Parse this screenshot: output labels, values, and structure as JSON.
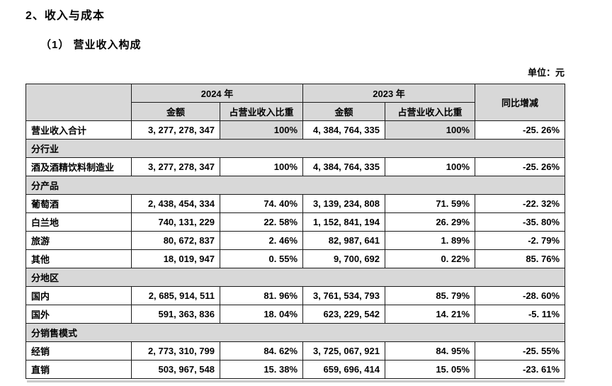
{
  "page": {
    "title": "2、收入与成本",
    "subtitle": "（1）  营业收入构成",
    "unit_label": "单位：元"
  },
  "table": {
    "header": {
      "year_2024": "2024 年",
      "year_2023": "2023 年",
      "amount": "金额",
      "ratio": "占营业收入比重",
      "yoy": "同比增减"
    },
    "rows": [
      {
        "type": "data",
        "label": "营业收入合计",
        "amount_2024": "3, 277, 278, 347",
        "ratio_2024": "100%",
        "amount_2023": "4, 384, 764, 335",
        "ratio_2023": "100%",
        "yoy": "-25. 26%",
        "shade_ratio": true
      },
      {
        "type": "section",
        "label": "分行业"
      },
      {
        "type": "data",
        "label": "酒及酒精饮料制造业",
        "amount_2024": "3, 277, 278, 347",
        "ratio_2024": "100%",
        "amount_2023": "4, 384, 764, 335",
        "ratio_2023": "100%",
        "yoy": "-25. 26%"
      },
      {
        "type": "section",
        "label": "分产品"
      },
      {
        "type": "data",
        "label": "葡萄酒",
        "amount_2024": "2, 438, 454, 334",
        "ratio_2024": "74. 40%",
        "amount_2023": "3, 139, 234, 808",
        "ratio_2023": "71. 59%",
        "yoy": "-22. 32%"
      },
      {
        "type": "data",
        "label": "白兰地",
        "amount_2024": "740, 131, 229",
        "ratio_2024": "22. 58%",
        "amount_2023": "1, 152, 841, 194",
        "ratio_2023": "26. 29%",
        "yoy": "-35. 80%"
      },
      {
        "type": "data",
        "label": "旅游",
        "amount_2024": "80, 672, 837",
        "ratio_2024": "2. 46%",
        "amount_2023": "82, 987, 641",
        "ratio_2023": "1. 89%",
        "yoy": "-2. 79%"
      },
      {
        "type": "data",
        "label": "其他",
        "amount_2024": "18, 019, 947",
        "ratio_2024": "0. 55%",
        "amount_2023": "9, 700, 692",
        "ratio_2023": "0. 22%",
        "yoy": "85. 76%"
      },
      {
        "type": "section",
        "label": "分地区"
      },
      {
        "type": "data",
        "label": "国内",
        "amount_2024": "2, 685, 914, 511",
        "ratio_2024": "81. 96%",
        "amount_2023": "3, 761, 534, 793",
        "ratio_2023": "85. 79%",
        "yoy": "-28. 60%"
      },
      {
        "type": "data",
        "label": "国外",
        "amount_2024": "591, 363, 836",
        "ratio_2024": "18. 04%",
        "amount_2023": "623, 229, 542",
        "ratio_2023": "14. 21%",
        "yoy": "-5. 11%"
      },
      {
        "type": "section",
        "label": "分销售模式"
      },
      {
        "type": "data",
        "label": "经销",
        "amount_2024": "2, 773, 310, 799",
        "ratio_2024": "84. 62%",
        "amount_2023": "3, 725, 067, 921",
        "ratio_2023": "84. 95%",
        "yoy": "-25. 55%"
      },
      {
        "type": "data",
        "label": "直销",
        "amount_2024": "503, 967, 548",
        "ratio_2024": "15. 38%",
        "amount_2023": "659, 696, 414",
        "ratio_2023": "15. 05%",
        "yoy": "-23. 61%"
      }
    ]
  },
  "colors": {
    "header_fill": "#d8d8d8",
    "section_fill": "#d8d8d8",
    "border": "#1a1a1a",
    "text": "#000000"
  }
}
